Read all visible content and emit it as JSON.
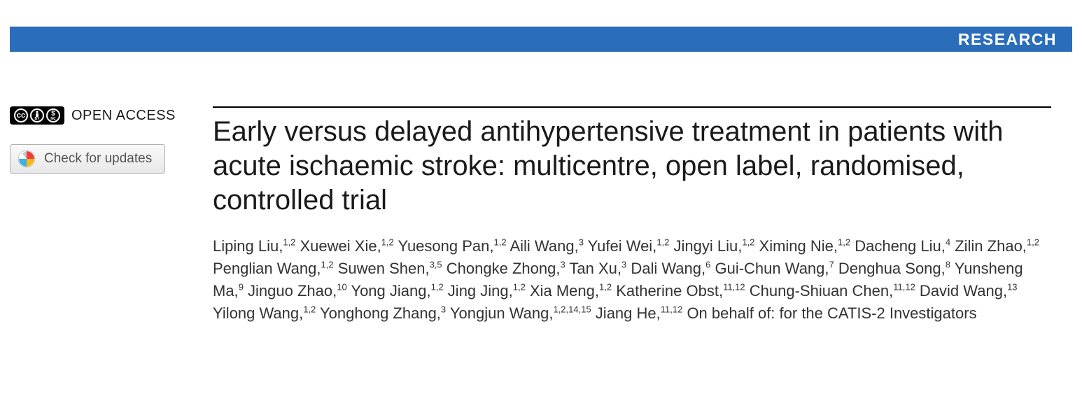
{
  "banner": {
    "label": "RESEARCH",
    "bg_color": "#2a6ebb",
    "text_color": "#ffffff"
  },
  "sidebar": {
    "open_access_label": "OPEN ACCESS",
    "cc_icons": [
      "CC",
      "BY",
      "NC"
    ],
    "updates_label": "Check for updates"
  },
  "article": {
    "title": "Early versus delayed antihypertensive treatment in patients with acute ischaemic stroke: multicentre, open label, randomised, controlled trial",
    "authors": [
      {
        "name": "Liping Liu",
        "aff": "1,2"
      },
      {
        "name": "Xuewei Xie",
        "aff": "1,2"
      },
      {
        "name": "Yuesong Pan",
        "aff": "1,2"
      },
      {
        "name": "Aili Wang",
        "aff": "3"
      },
      {
        "name": "Yufei Wei",
        "aff": "1,2"
      },
      {
        "name": "Jingyi Liu",
        "aff": "1,2"
      },
      {
        "name": "Ximing Nie",
        "aff": "1,2"
      },
      {
        "name": "Dacheng Liu",
        "aff": "4"
      },
      {
        "name": "Zilin Zhao",
        "aff": "1,2"
      },
      {
        "name": "Penglian Wang",
        "aff": "1,2"
      },
      {
        "name": "Suwen Shen",
        "aff": "3,5"
      },
      {
        "name": "Chongke Zhong",
        "aff": "3"
      },
      {
        "name": "Tan Xu",
        "aff": "3"
      },
      {
        "name": "Dali Wang",
        "aff": "6"
      },
      {
        "name": "Gui-Chun Wang",
        "aff": "7"
      },
      {
        "name": "Denghua Song",
        "aff": "8"
      },
      {
        "name": "Yunsheng Ma",
        "aff": "9"
      },
      {
        "name": "Jinguo Zhao",
        "aff": "10"
      },
      {
        "name": "Yong Jiang",
        "aff": "1,2"
      },
      {
        "name": "Jing Jing",
        "aff": "1,2"
      },
      {
        "name": "Xia Meng",
        "aff": "1,2"
      },
      {
        "name": "Katherine Obst",
        "aff": "11,12"
      },
      {
        "name": "Chung-Shiuan Chen",
        "aff": "11,12"
      },
      {
        "name": "David Wang",
        "aff": "13"
      },
      {
        "name": "Yilong Wang",
        "aff": "1,2"
      },
      {
        "name": "Yonghong Zhang",
        "aff": "3"
      },
      {
        "name": "Yongjun Wang",
        "aff": "1,2,14,15"
      },
      {
        "name": "Jiang He",
        "aff": "11,12"
      }
    ],
    "suffix": "On behalf of: for the CATIS-2 Investigators"
  },
  "colors": {
    "text": "#1a1a1a",
    "muted": "#555555",
    "rule": "#000000",
    "button_border": "#b0b0b0"
  }
}
